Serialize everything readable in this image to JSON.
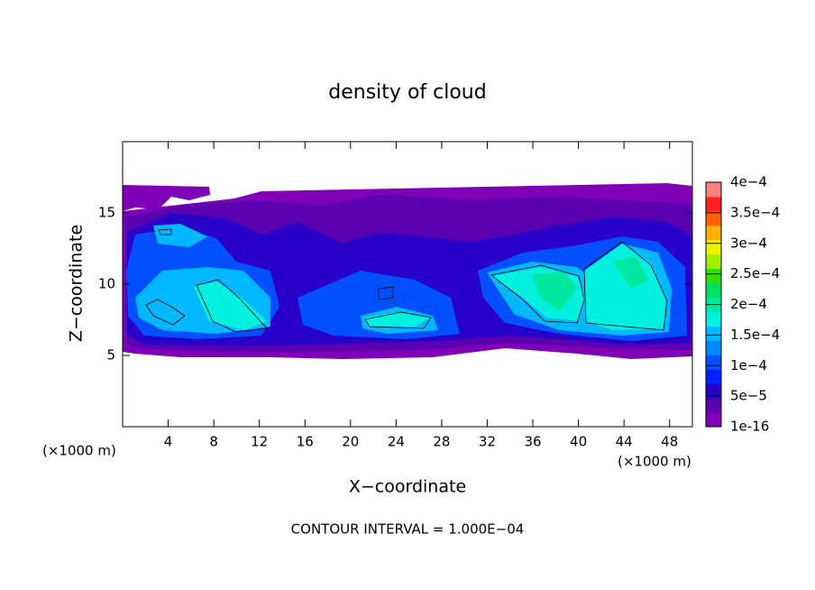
{
  "chart_data": {
    "type": "contour",
    "title": "density of cloud",
    "xlabel": "X−coordinate",
    "ylabel": "Z−coordinate",
    "x_unit_left": "(×1000 m)",
    "x_unit_right": "(×1000 m)",
    "note": "CONTOUR INTERVAL = 1.000E−04",
    "xlim": [
      0,
      50
    ],
    "xticks": [
      4,
      8,
      12,
      16,
      20,
      24,
      28,
      32,
      36,
      40,
      44,
      48
    ],
    "ylim": [
      0,
      20
    ],
    "yticks": [
      5,
      10,
      15
    ],
    "colorbar": {
      "lim": [
        0,
        0.0004
      ],
      "ticks": [
        {
          "value": 1e-16,
          "label": "1e-16"
        },
        {
          "value": 5e-05,
          "label": "5e−5"
        },
        {
          "value": 0.0001,
          "label": "1e−4"
        },
        {
          "value": 0.00015,
          "label": "1.5e−4"
        },
        {
          "value": 0.0002,
          "label": "2e−4"
        },
        {
          "value": 0.00025,
          "label": "2.5e−4"
        },
        {
          "value": 0.0003,
          "label": "3e−4"
        },
        {
          "value": 0.00035,
          "label": "3.5e−4"
        },
        {
          "value": 0.0004,
          "label": "4e−4"
        }
      ],
      "colors": [
        "#8000b8",
        "#5a00b0",
        "#2800c8",
        "#0020ff",
        "#0050ff",
        "#0088ff",
        "#00b8ff",
        "#00f0e0",
        "#00e8a0",
        "#00e060",
        "#30e000",
        "#a0f000",
        "#f0f000",
        "#ffb000",
        "#ff6000",
        "#ff2020",
        "#ff8080"
      ]
    }
  }
}
